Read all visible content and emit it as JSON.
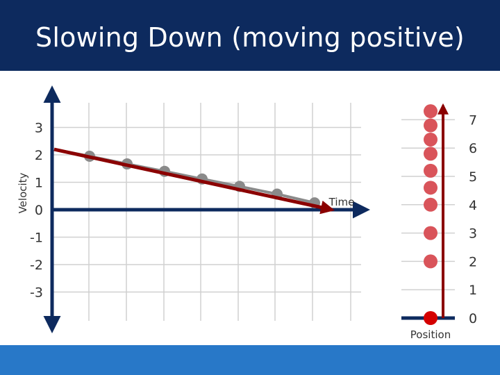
{
  "title": "Slowing Down (moving positive)",
  "colors": {
    "header": "#0d2a5e",
    "footer": "#2878c8",
    "axis": "#0d2a5e",
    "arrow": "#8b0000",
    "dot": "#d9545a",
    "dot_current": "#d40000",
    "grid": "#d0d0d0",
    "line": "#8a8a8a"
  },
  "velocity_graph": {
    "y_axis_label": "Velocity",
    "x_axis_label": "Time",
    "y_tick_labels": [
      "3",
      "2",
      "1",
      "0",
      "-1",
      "-2",
      "-3"
    ],
    "icon": "velocity-line-arrow"
  },
  "chart_data": {
    "type": "line",
    "title": "",
    "xlabel": "Time",
    "ylabel": "Velocity",
    "ylim": [
      -3,
      3
    ],
    "x": [
      0,
      1,
      2,
      3,
      4,
      5,
      6,
      7
    ],
    "series": [
      {
        "values": [
          2.2,
          1.95,
          1.67,
          1.4,
          1.12,
          0.85,
          0.57,
          0.25
        ]
      }
    ]
  },
  "position_line": {
    "label": "Position",
    "tick_labels": [
      "7",
      "6",
      "5",
      "4",
      "3",
      "2",
      "1",
      "0"
    ],
    "positions": [
      0,
      2,
      3,
      4,
      4.6,
      5.2,
      5.8,
      6.3,
      6.8,
      7.3
    ],
    "current_index": 0
  }
}
